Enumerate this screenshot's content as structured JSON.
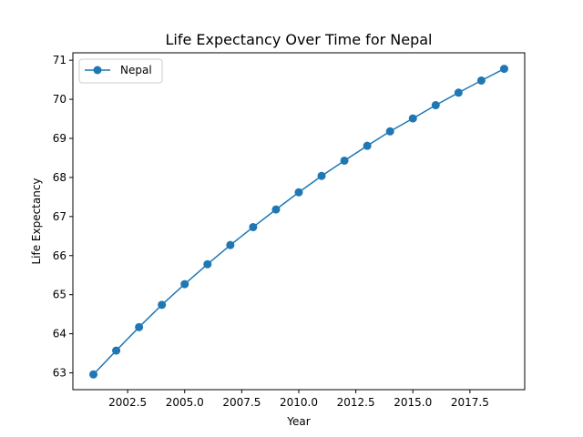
{
  "chart_data": {
    "type": "line",
    "title": "Life Expectancy Over Time for Nepal",
    "xlabel": "Year",
    "ylabel": "Life Expectancy",
    "xlim": [
      2000.1,
      2019.9
    ],
    "ylim": [
      62.57,
      71.19
    ],
    "xticks": [
      2002.5,
      2005.0,
      2007.5,
      2010.0,
      2012.5,
      2015.0,
      2017.5
    ],
    "xtick_labels": [
      "2002.5",
      "2005.0",
      "2007.5",
      "2010.0",
      "2012.5",
      "2015.0",
      "2017.5"
    ],
    "yticks": [
      63,
      64,
      65,
      66,
      67,
      68,
      69,
      70,
      71
    ],
    "ytick_labels": [
      "63",
      "64",
      "65",
      "66",
      "67",
      "68",
      "69",
      "70",
      "71"
    ],
    "grid": false,
    "legend_position": "top-left",
    "series": [
      {
        "name": "Nepal",
        "color": "#1f77b4",
        "x": [
          2001,
          2002,
          2003,
          2004,
          2005,
          2006,
          2007,
          2008,
          2009,
          2010,
          2011,
          2012,
          2013,
          2014,
          2015,
          2016,
          2017,
          2018,
          2019
        ],
        "y": [
          62.96,
          63.57,
          64.17,
          64.74,
          65.27,
          65.78,
          66.27,
          66.73,
          67.18,
          67.62,
          68.04,
          68.43,
          68.81,
          69.18,
          69.51,
          69.85,
          70.17,
          70.48,
          70.78
        ]
      }
    ]
  }
}
